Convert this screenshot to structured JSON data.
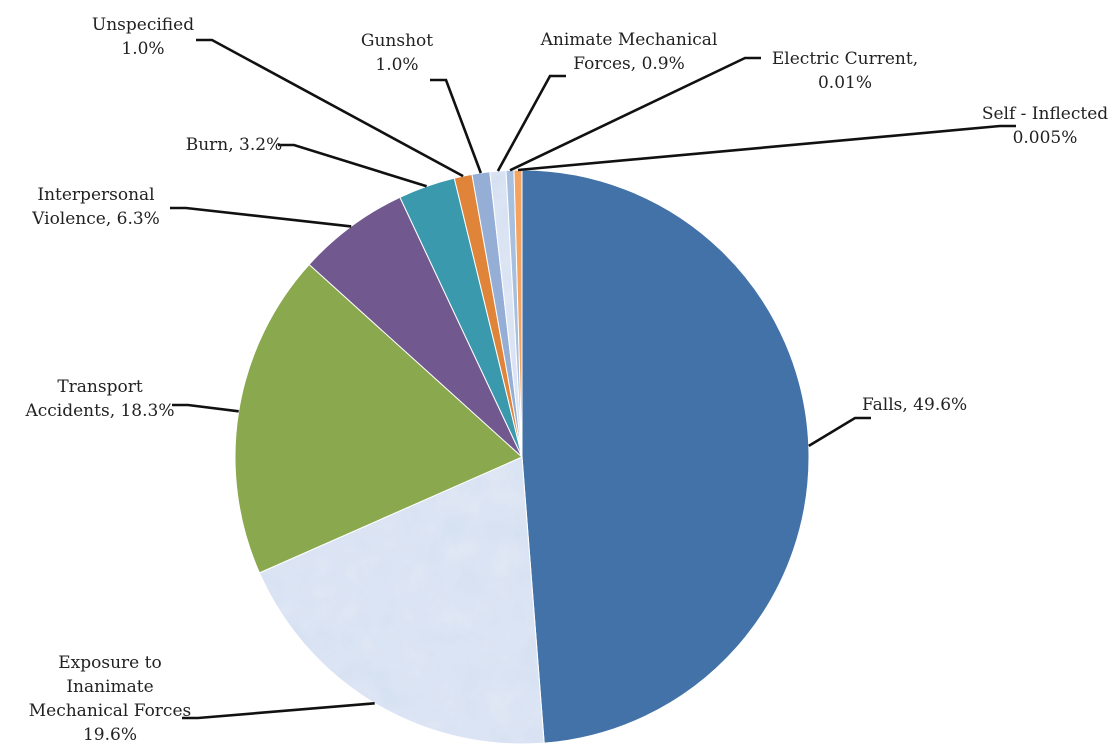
{
  "chart_data": {
    "type": "pie",
    "start_angle_deg": 0,
    "direction": "clockwise",
    "slices": [
      {
        "key": "falls",
        "lines": [
          "Falls, 49.6%"
        ],
        "value": 49.6,
        "color": "#4272a8",
        "pattern": false
      },
      {
        "key": "exposure",
        "lines": [
          "Exposure to",
          "Inanimate",
          "Mechanical Forces",
          "19.6%"
        ],
        "value": 19.6,
        "color": "#c9d8ef",
        "pattern": true
      },
      {
        "key": "transport",
        "lines": [
          "Transport",
          "Accidents, 18.3%"
        ],
        "value": 18.3,
        "color": "#8aa84e",
        "pattern": false
      },
      {
        "key": "interpersonal",
        "lines": [
          "Interpersonal",
          "Violence, 6.3%"
        ],
        "value": 6.3,
        "color": "#71588f",
        "pattern": false
      },
      {
        "key": "burn",
        "lines": [
          "Burn, 3.2%"
        ],
        "value": 3.2,
        "color": "#3b99ae",
        "pattern": false
      },
      {
        "key": "unspecified",
        "lines": [
          "Unspecified",
          "1.0%"
        ],
        "value": 1.0,
        "color": "#e0843a",
        "pattern": false
      },
      {
        "key": "gunshot",
        "lines": [
          "Gunshot",
          "1.0%"
        ],
        "value": 1.0,
        "color": "#95aed6",
        "pattern": false
      },
      {
        "key": "animate",
        "lines": [
          "Animate Mechanical",
          "Forces, 0.9%"
        ],
        "value": 0.9,
        "color": "#d6e1f1",
        "pattern": true
      },
      {
        "key": "electric",
        "lines": [
          "Electric Current,",
          "0.01%"
        ],
        "value": 0.01,
        "color": "#a8c0e0",
        "pattern": false
      },
      {
        "key": "self_inflicted",
        "lines": [
          "Self - Inflected",
          "0.005%"
        ],
        "value": 0.005,
        "color": "#f4a460",
        "pattern": false
      }
    ]
  }
}
